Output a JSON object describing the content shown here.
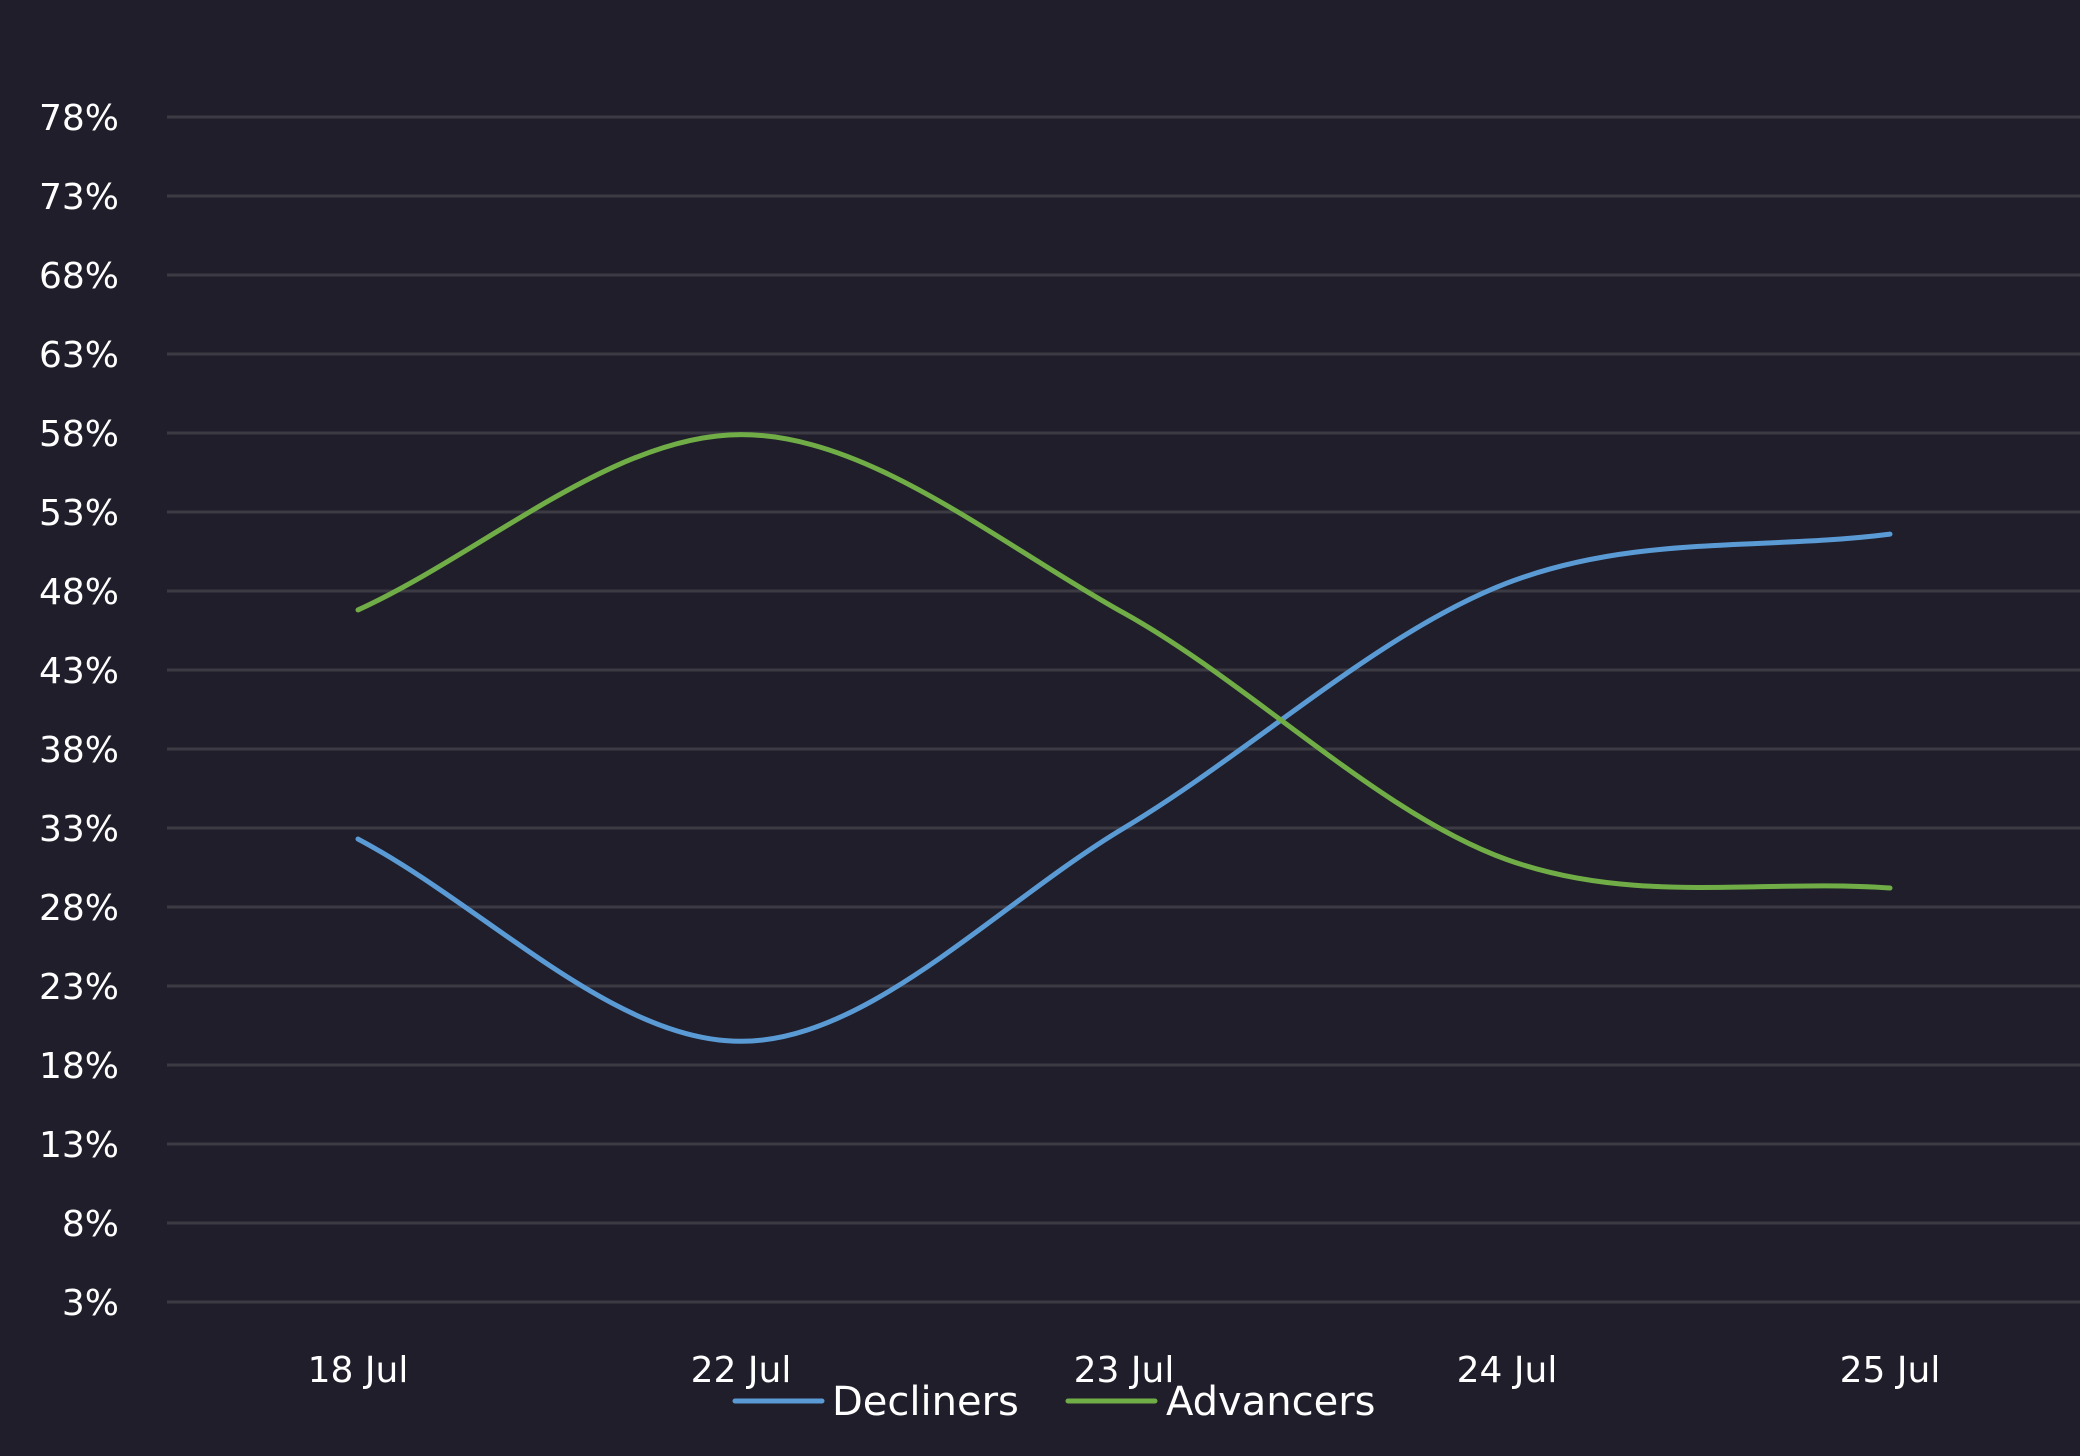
{
  "chart_data": {
    "type": "line",
    "smooth": true,
    "categories": [
      "18 Jul",
      "22 Jul",
      "23 Jul",
      "24 Jul",
      "25 Jul"
    ],
    "series": [
      {
        "name": "Decliners",
        "color": "#5b9bd5",
        "values": [
          32.3,
          19.5,
          33.0,
          48.5,
          51.6
        ]
      },
      {
        "name": "Advancers",
        "color": "#70ad47",
        "values": [
          46.8,
          57.9,
          46.6,
          31.0,
          29.2
        ]
      }
    ],
    "y_ticks": [
      "3%",
      "8%",
      "13%",
      "18%",
      "23%",
      "28%",
      "33%",
      "38%",
      "43%",
      "48%",
      "53%",
      "58%",
      "63%",
      "68%",
      "73%",
      "78%"
    ],
    "ylim": [
      3,
      78
    ],
    "grid": true,
    "legend": "bottom-center",
    "background": "#1f1e2a",
    "gridline_color": "#3c3b44",
    "text_color": "#ffffff"
  }
}
